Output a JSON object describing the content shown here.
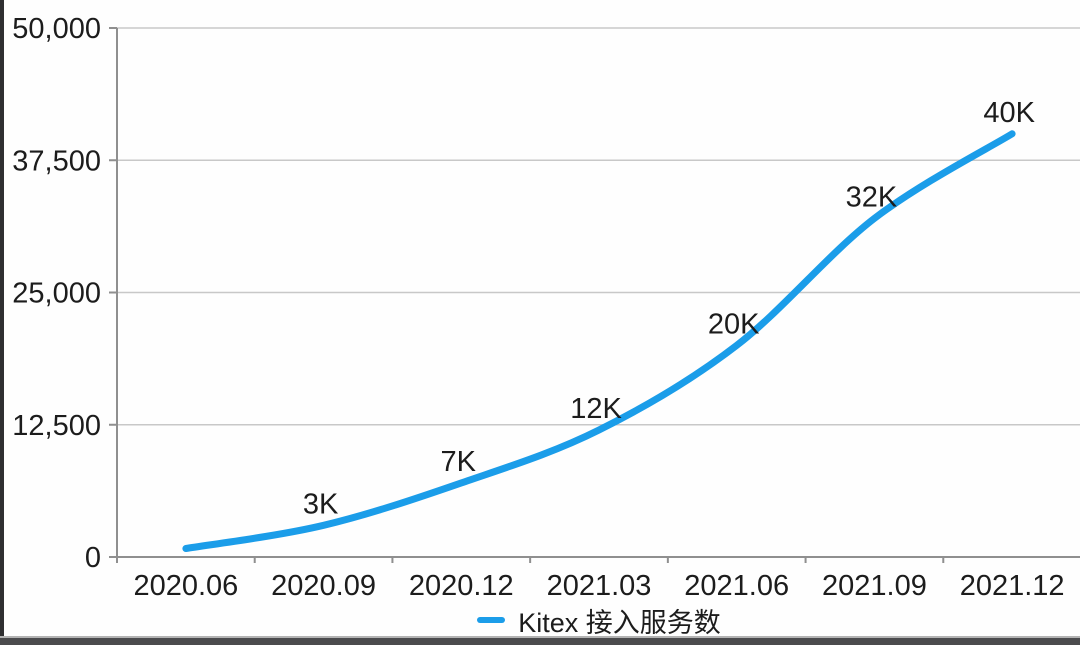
{
  "chart_data": {
    "type": "line",
    "title": "",
    "categories": [
      "2020.06",
      "2020.09",
      "2020.12",
      "2021.03",
      "2021.06",
      "2021.09",
      "2021.12"
    ],
    "series": [
      {
        "name": "Kitex 接入服务数",
        "color": "#1b9de9",
        "values": [
          800,
          3000,
          7000,
          12000,
          20000,
          32000,
          40000
        ],
        "point_labels": [
          "",
          "3K",
          "7K",
          "12K",
          "20K",
          "32K",
          "40K"
        ]
      }
    ],
    "xlabel": "",
    "ylabel": "",
    "ylim": [
      0,
      50000
    ],
    "yticks": [
      0,
      12500,
      25000,
      37500,
      50000
    ],
    "ytick_labels": [
      "0",
      "12,500",
      "25,000",
      "37,500",
      "50,000"
    ],
    "grid": true,
    "legend_position": "bottom",
    "colors": {
      "line": "#1b9de9",
      "gridline": "#c8c8c8",
      "axis": "#8f8f8f",
      "text": "#1c1c1c",
      "left_strip": "#2f2f31",
      "bottom_bar": "#4b4b4d"
    }
  }
}
